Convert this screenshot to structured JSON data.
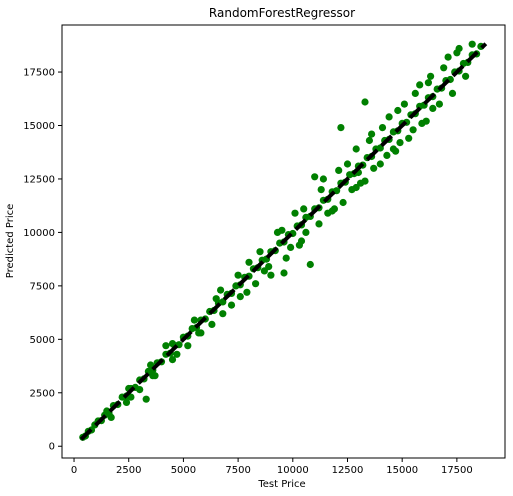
{
  "chart_data": {
    "type": "scatter",
    "title": "RandomForestRegressor",
    "xlabel": "Test Price",
    "ylabel": "Predicted Price",
    "xlim": [
      -550,
      19700
    ],
    "ylim": [
      -550,
      19700
    ],
    "xticks": [
      0,
      2500,
      5000,
      7500,
      10000,
      12500,
      15000,
      17500
    ],
    "yticks": [
      0,
      2500,
      5000,
      7500,
      10000,
      12500,
      15000,
      17500
    ],
    "xtick_labels": [
      "0",
      "2500",
      "5000",
      "7500",
      "10000",
      "12500",
      "15000",
      "17500"
    ],
    "ytick_labels": [
      "0",
      "2500",
      "5000",
      "7500",
      "10000",
      "12500",
      "15000",
      "17500"
    ],
    "grid": false,
    "point_color": "#008000",
    "reference_line": {
      "x": [
        326,
        18823
      ],
      "y": [
        326,
        18823
      ],
      "color": "#000000",
      "style": "dashed"
    },
    "series": [
      {
        "points": [
          [
            400,
            420
          ],
          [
            520,
            480
          ],
          [
            650,
            700
          ],
          [
            800,
            760
          ],
          [
            950,
            1000
          ],
          [
            1100,
            1180
          ],
          [
            1250,
            1200
          ],
          [
            1400,
            1450
          ],
          [
            1600,
            1540
          ],
          [
            1800,
            1900
          ],
          [
            2000,
            1950
          ],
          [
            2200,
            2300
          ],
          [
            2400,
            2350
          ],
          [
            2600,
            2700
          ],
          [
            2800,
            2750
          ],
          [
            3000,
            3100
          ],
          [
            3200,
            3150
          ],
          [
            3400,
            3500
          ],
          [
            3600,
            3550
          ],
          [
            3800,
            3900
          ],
          [
            4000,
            3950
          ],
          [
            4200,
            4300
          ],
          [
            4400,
            4350
          ],
          [
            4600,
            4700
          ],
          [
            4800,
            4750
          ],
          [
            5000,
            5100
          ],
          [
            5200,
            5150
          ],
          [
            5400,
            5500
          ],
          [
            5600,
            5550
          ],
          [
            5800,
            5900
          ],
          [
            6000,
            5950
          ],
          [
            6200,
            6300
          ],
          [
            6400,
            6350
          ],
          [
            6600,
            6700
          ],
          [
            6800,
            6750
          ],
          [
            7000,
            7100
          ],
          [
            7200,
            7150
          ],
          [
            7400,
            7500
          ],
          [
            7600,
            7550
          ],
          [
            7800,
            7900
          ],
          [
            8000,
            7950
          ],
          [
            8200,
            8300
          ],
          [
            8400,
            8350
          ],
          [
            8600,
            8700
          ],
          [
            8800,
            8750
          ],
          [
            9000,
            9100
          ],
          [
            9200,
            9150
          ],
          [
            9400,
            9500
          ],
          [
            9600,
            9550
          ],
          [
            9800,
            9900
          ],
          [
            10000,
            9950
          ],
          [
            10200,
            10300
          ],
          [
            10400,
            10350
          ],
          [
            10600,
            10700
          ],
          [
            10800,
            10750
          ],
          [
            11000,
            11100
          ],
          [
            11200,
            11150
          ],
          [
            11400,
            11500
          ],
          [
            11600,
            11550
          ],
          [
            11800,
            11900
          ],
          [
            12000,
            11950
          ],
          [
            12200,
            12300
          ],
          [
            12400,
            12350
          ],
          [
            12600,
            12700
          ],
          [
            12800,
            12750
          ],
          [
            13000,
            13100
          ],
          [
            13200,
            13150
          ],
          [
            13400,
            13500
          ],
          [
            13600,
            13550
          ],
          [
            13800,
            13900
          ],
          [
            14000,
            13950
          ],
          [
            14200,
            14300
          ],
          [
            14400,
            14350
          ],
          [
            14600,
            14700
          ],
          [
            14800,
            14750
          ],
          [
            15000,
            15100
          ],
          [
            15200,
            15150
          ],
          [
            15400,
            15500
          ],
          [
            15600,
            15550
          ],
          [
            15800,
            15900
          ],
          [
            16000,
            15950
          ],
          [
            16200,
            16300
          ],
          [
            16400,
            16350
          ],
          [
            16600,
            16700
          ],
          [
            16800,
            16750
          ],
          [
            17000,
            17100
          ],
          [
            17200,
            17150
          ],
          [
            17400,
            17500
          ],
          [
            17600,
            17550
          ],
          [
            17800,
            17900
          ],
          [
            18000,
            17950
          ],
          [
            18200,
            18300
          ],
          [
            18400,
            18350
          ],
          [
            18600,
            18700
          ],
          [
            1700,
            1350
          ],
          [
            2400,
            2050
          ],
          [
            2600,
            2300
          ],
          [
            3000,
            2650
          ],
          [
            3300,
            2200
          ],
          [
            3700,
            3300
          ],
          [
            4200,
            4700
          ],
          [
            4500,
            4050
          ],
          [
            5200,
            4700
          ],
          [
            5800,
            5300
          ],
          [
            6300,
            5700
          ],
          [
            6700,
            7300
          ],
          [
            7200,
            6600
          ],
          [
            7600,
            7000
          ],
          [
            8000,
            8600
          ],
          [
            8300,
            7600
          ],
          [
            8700,
            8200
          ],
          [
            9000,
            8000
          ],
          [
            9300,
            10000
          ],
          [
            9600,
            8100
          ],
          [
            9700,
            8800
          ],
          [
            10100,
            10900
          ],
          [
            10400,
            9600
          ],
          [
            10800,
            8500
          ],
          [
            11000,
            12600
          ],
          [
            11200,
            10400
          ],
          [
            11400,
            12500
          ],
          [
            11800,
            11000
          ],
          [
            12200,
            14900
          ],
          [
            12300,
            11400
          ],
          [
            12500,
            13200
          ],
          [
            12900,
            12100
          ],
          [
            13000,
            12800
          ],
          [
            13300,
            16100
          ],
          [
            13300,
            12400
          ],
          [
            13600,
            14600
          ],
          [
            14000,
            13200
          ],
          [
            14400,
            15400
          ],
          [
            14700,
            13800
          ],
          [
            15100,
            16000
          ],
          [
            15300,
            14400
          ],
          [
            15800,
            16900
          ],
          [
            16100,
            15200
          ],
          [
            16300,
            17300
          ],
          [
            16700,
            16000
          ],
          [
            17100,
            18200
          ],
          [
            17300,
            16500
          ],
          [
            17600,
            18600
          ],
          [
            17900,
            17300
          ],
          [
            18200,
            18800
          ],
          [
            13700,
            13000
          ],
          [
            14300,
            13600
          ],
          [
            14900,
            14200
          ],
          [
            15500,
            14800
          ],
          [
            16400,
            15800
          ],
          [
            12700,
            12000
          ],
          [
            11600,
            10900
          ],
          [
            10600,
            10000
          ],
          [
            9900,
            9300
          ],
          [
            8900,
            8400
          ],
          [
            12100,
            12900
          ],
          [
            12900,
            13900
          ],
          [
            13500,
            14300
          ],
          [
            14100,
            14900
          ],
          [
            14800,
            15700
          ],
          [
            15600,
            16500
          ],
          [
            16200,
            17000
          ],
          [
            16900,
            17700
          ],
          [
            17500,
            18400
          ],
          [
            11300,
            12000
          ],
          [
            10500,
            11100
          ],
          [
            9500,
            10100
          ],
          [
            8500,
            9100
          ],
          [
            7500,
            8000
          ],
          [
            6500,
            6900
          ],
          [
            5500,
            5900
          ],
          [
            4500,
            4800
          ],
          [
            3500,
            3800
          ],
          [
            2500,
            2700
          ],
          [
            1500,
            1650
          ],
          [
            7900,
            7200
          ],
          [
            6800,
            6200
          ],
          [
            5700,
            5300
          ],
          [
            4700,
            4300
          ],
          [
            3600,
            3300
          ],
          [
            10300,
            9400
          ],
          [
            11900,
            11100
          ],
          [
            13100,
            12300
          ],
          [
            14600,
            13900
          ],
          [
            15900,
            15100
          ]
        ]
      }
    ]
  }
}
